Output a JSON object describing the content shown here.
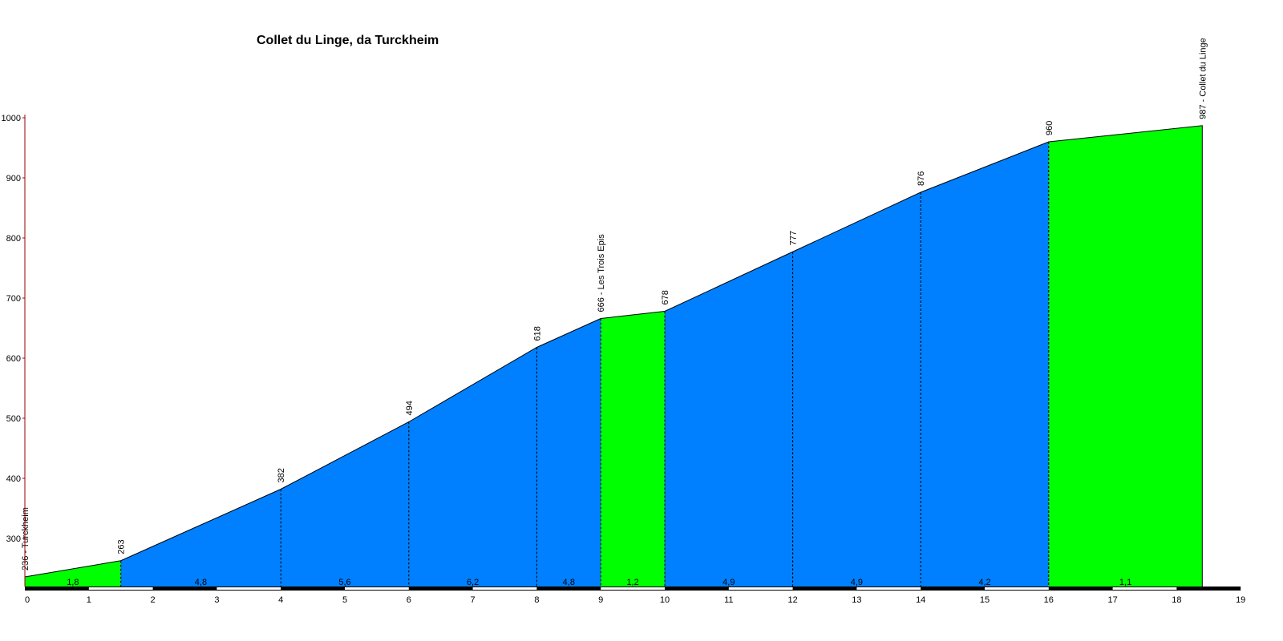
{
  "chart_data": {
    "type": "area",
    "title": "Collet du Linge, da Turckheim",
    "xlabel": "",
    "ylabel": "",
    "xlim": [
      0,
      19
    ],
    "ylim": [
      220,
      1000
    ],
    "x_ticks": [
      0,
      1,
      2,
      3,
      4,
      5,
      6,
      7,
      8,
      9,
      10,
      11,
      12,
      13,
      14,
      15,
      16,
      17,
      18,
      19
    ],
    "y_ticks": [
      300,
      400,
      500,
      600,
      700,
      800,
      900,
      1000
    ],
    "grid": false,
    "colors": {
      "flat": "#00ff00",
      "climb": "#0080ff",
      "axis_y": "#990000"
    },
    "points": [
      {
        "x": 0,
        "y": 236,
        "label": "236 - Turckheim"
      },
      {
        "x": 1.5,
        "y": 263,
        "label": "263"
      },
      {
        "x": 4,
        "y": 382,
        "label": "382"
      },
      {
        "x": 6,
        "y": 494,
        "label": "494"
      },
      {
        "x": 8,
        "y": 618,
        "label": "618"
      },
      {
        "x": 9,
        "y": 666,
        "label": "666 - Les Trois Epis"
      },
      {
        "x": 10,
        "y": 678,
        "label": "678"
      },
      {
        "x": 12,
        "y": 777,
        "label": "777"
      },
      {
        "x": 14,
        "y": 876,
        "label": "876"
      },
      {
        "x": 16,
        "y": 960,
        "label": "960"
      },
      {
        "x": 18.4,
        "y": 987,
        "label": "987 - Collet du Linge"
      }
    ],
    "segments": [
      {
        "from": 0,
        "to": 1.5,
        "gradient": "1,8",
        "color": "flat"
      },
      {
        "from": 1.5,
        "to": 4,
        "gradient": "4,8",
        "color": "climb"
      },
      {
        "from": 4,
        "to": 6,
        "gradient": "5,6",
        "color": "climb"
      },
      {
        "from": 6,
        "to": 8,
        "gradient": "6,2",
        "color": "climb"
      },
      {
        "from": 8,
        "to": 9,
        "gradient": "4,8",
        "color": "climb"
      },
      {
        "from": 9,
        "to": 10,
        "gradient": "1,2",
        "color": "flat"
      },
      {
        "from": 10,
        "to": 12,
        "gradient": "4,9",
        "color": "climb"
      },
      {
        "from": 12,
        "to": 14,
        "gradient": "4,9",
        "color": "climb"
      },
      {
        "from": 14,
        "to": 16,
        "gradient": "4,2",
        "color": "climb"
      },
      {
        "from": 16,
        "to": 18.4,
        "gradient": "1,1",
        "color": "flat"
      }
    ]
  }
}
